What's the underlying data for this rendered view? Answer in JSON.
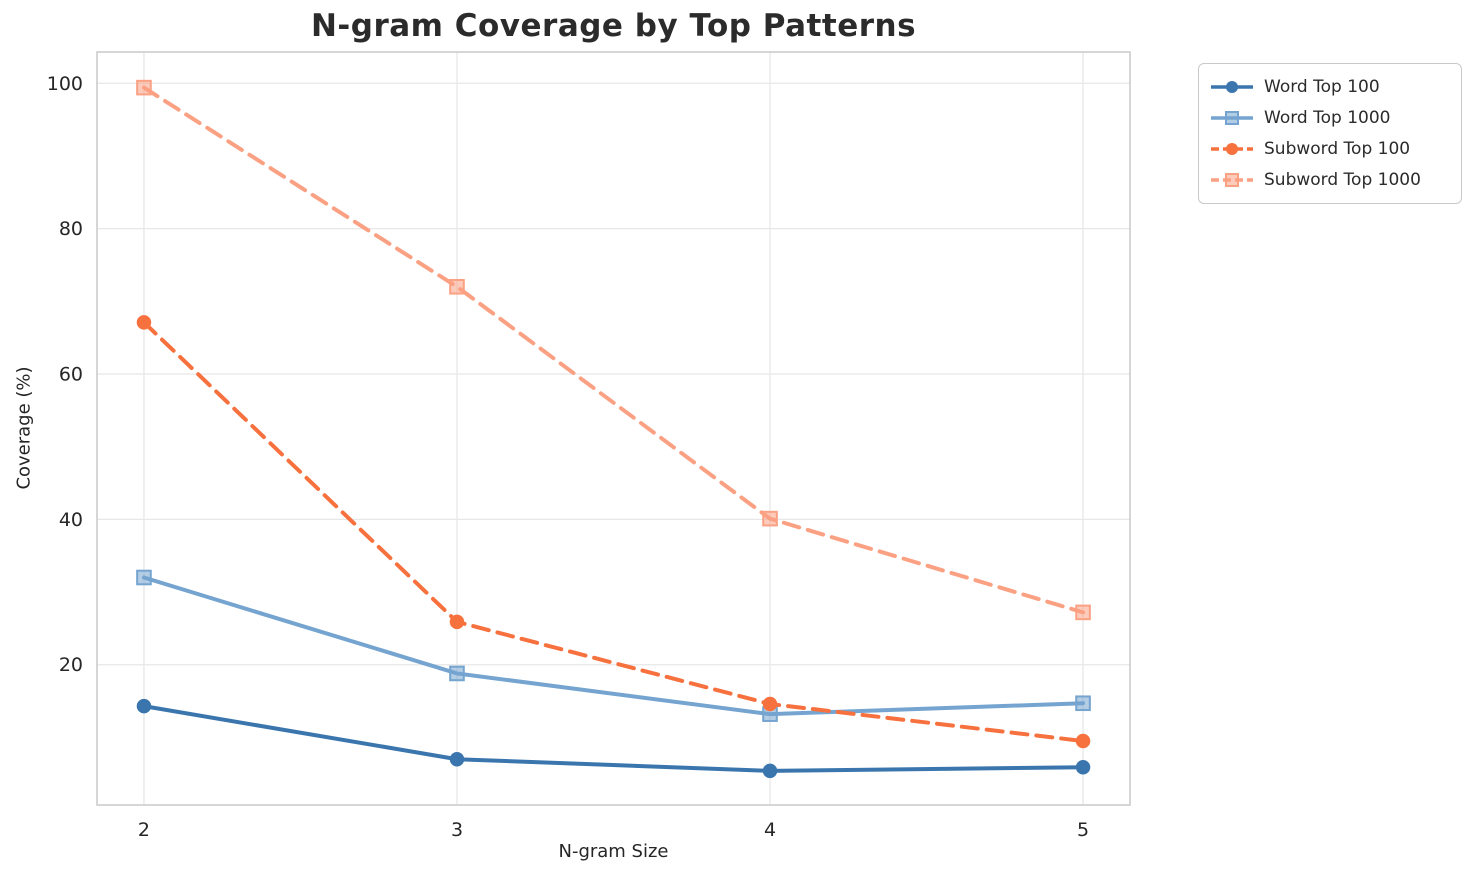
{
  "figure": {
    "title": "N-gram Coverage by Top Patterns",
    "xlabel": "N-gram Size",
    "ylabel": "Coverage (%)"
  },
  "colors": {
    "grid": "#e7e7e7",
    "spine": "#cccccc",
    "text": "#262626",
    "title_text": "#2b2b2b",
    "word_top_100": "#3a76ad",
    "word_top_1000": "#74a4cf",
    "subword_top_100": "#f7713f",
    "subword_top_1000": "#fba183"
  },
  "chart_data": {
    "type": "line",
    "title": "N-gram Coverage by Top Patterns",
    "xlabel": "N-gram Size",
    "ylabel": "Coverage (%)",
    "x": [
      2,
      3,
      4,
      5
    ],
    "x_ticks": [
      2,
      3,
      4,
      5
    ],
    "y_ticks": [
      20,
      40,
      60,
      80,
      100
    ],
    "xlim": [
      1.85,
      5.15
    ],
    "ylim": [
      0.7,
      104.3
    ],
    "grid": true,
    "legend_position": "outside-top-right",
    "series": [
      {
        "name": "Word Top 100",
        "values": [
          14.3,
          7.0,
          5.4,
          5.9
        ],
        "color": "#3a76ad",
        "line_style": "solid",
        "marker": "circle"
      },
      {
        "name": "Word Top 1000",
        "values": [
          32.0,
          18.8,
          13.2,
          14.7
        ],
        "color": "#74a4cf",
        "line_style": "solid",
        "marker": "square"
      },
      {
        "name": "Subword Top 100",
        "values": [
          67.1,
          25.9,
          14.6,
          9.5
        ],
        "color": "#f7713f",
        "line_style": "dashed",
        "marker": "circle"
      },
      {
        "name": "Subword Top 1000",
        "values": [
          99.4,
          72.0,
          40.1,
          27.2
        ],
        "color": "#fba183",
        "line_style": "dashed",
        "marker": "square"
      }
    ]
  }
}
